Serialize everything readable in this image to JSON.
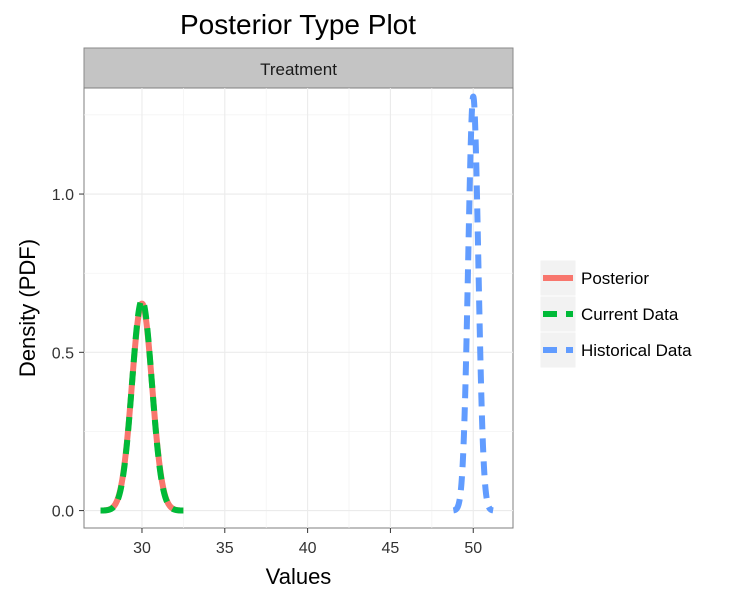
{
  "chart_data": {
    "type": "line",
    "title": "Posterior Type Plot",
    "facet_label": "Treatment",
    "xlabel": "Values",
    "ylabel": "Density (PDF)",
    "xlim": [
      26.5,
      52.4
    ],
    "ylim": [
      -0.055,
      1.335
    ],
    "x_ticks": [
      30,
      35,
      40,
      45,
      50
    ],
    "y_ticks": [
      0.0,
      0.5,
      1.0
    ],
    "y_tick_labels": [
      "0.0",
      "0.5",
      "1.0"
    ],
    "grid": true,
    "legend_position": "right",
    "series": [
      {
        "name": "Posterior",
        "color": "#F8766D",
        "linestyle": "solid",
        "distribution": "normal",
        "mean": 30.0,
        "sd": 0.61,
        "x_range": [
          27.5,
          32.5
        ]
      },
      {
        "name": "Current Data",
        "color": "#00BA38",
        "linestyle": "dashed",
        "distribution": "normal",
        "mean": 30.0,
        "sd": 0.6,
        "x_range": [
          27.5,
          32.5
        ]
      },
      {
        "name": "Historical Data",
        "color": "#619CFF",
        "linestyle": "dashed",
        "distribution": "normal",
        "mean": 50.0,
        "sd": 0.305,
        "x_range": [
          48.8,
          51.2
        ]
      }
    ]
  }
}
